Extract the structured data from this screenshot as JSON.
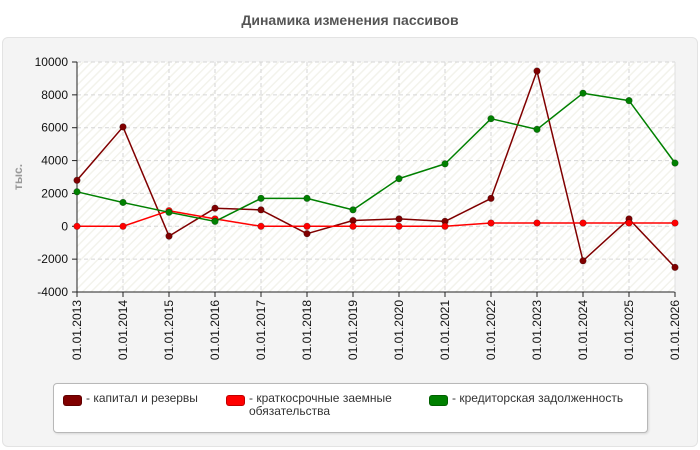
{
  "chart_data": {
    "type": "line",
    "title": "Динамика изменения пассивов",
    "ylabel": "тыс.",
    "xlabel": "",
    "ylim": [
      -4000,
      10000
    ],
    "yticks": [
      -4000,
      -2000,
      0,
      2000,
      4000,
      6000,
      8000,
      10000
    ],
    "grid": true,
    "legend_position": "bottom",
    "categories": [
      "01.01.2013",
      "01.01.2014",
      "01.01.2015",
      "01.01.2016",
      "01.01.2017",
      "01.01.2018",
      "01.01.2019",
      "01.01.2020",
      "01.01.2021",
      "01.01.2022",
      "01.01.2023",
      "01.01.2024",
      "01.01.2025",
      "01.01.2026"
    ],
    "series": [
      {
        "name": "капитал и резервы",
        "color": "#800000",
        "values": [
          2800,
          6050,
          -600,
          1100,
          1000,
          -450,
          350,
          450,
          300,
          1700,
          9450,
          -2100,
          450,
          -2500
        ]
      },
      {
        "name": "краткосрочные заемные обязательства",
        "color": "#ff0000",
        "values": [
          0,
          0,
          950,
          450,
          0,
          0,
          0,
          0,
          0,
          200,
          200,
          200,
          200,
          200
        ]
      },
      {
        "name": "кредиторская задолженность",
        "color": "#008000",
        "values": [
          2100,
          1450,
          850,
          300,
          1700,
          1700,
          1000,
          2900,
          3800,
          6550,
          5900,
          8100,
          7650,
          3850
        ]
      }
    ]
  },
  "legend": {
    "items": [
      {
        "label": "- капитал и резервы",
        "color": "#800000"
      },
      {
        "label": "- краткосрочные заемные\nобязательства",
        "color": "#ff0000"
      },
      {
        "label": "- кредиторская задолженность",
        "color": "#008000"
      }
    ]
  }
}
